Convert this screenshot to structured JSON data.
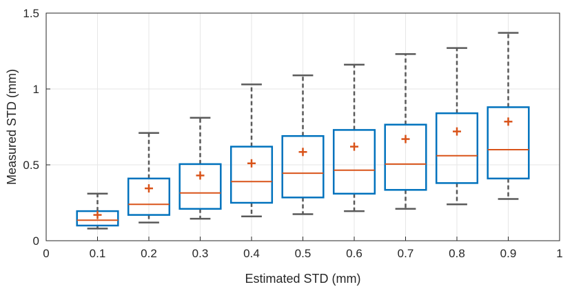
{
  "chart_data": {
    "type": "boxplot",
    "title": "",
    "xlabel": "Estimated STD (mm)",
    "ylabel": "Measured STD (mm)",
    "xlim": [
      0,
      1
    ],
    "ylim": [
      0,
      1.5
    ],
    "xticks": [
      0,
      0.1,
      0.2,
      0.3,
      0.4,
      0.5,
      0.6,
      0.7,
      0.8,
      0.9,
      1
    ],
    "xtick_labels": [
      "0",
      "0.1",
      "0.2",
      "0.3",
      "0.4",
      "0.5",
      "0.6",
      "0.7",
      "0.8",
      "0.9",
      "1"
    ],
    "yticks": [
      0,
      0.5,
      1,
      1.5
    ],
    "ytick_labels": [
      "0",
      "0.5",
      "1",
      "1.5"
    ],
    "grid": true,
    "colors": {
      "box": "#0072BD",
      "median": "#D95319",
      "mean_marker": "#D95319",
      "whisker": "#595959",
      "grid": "#e6e6e6",
      "axis": "#262626"
    },
    "boxes": [
      {
        "x": 0.1,
        "whisker_low": 0.08,
        "q1": 0.1,
        "median": 0.135,
        "q3": 0.195,
        "whisker_high": 0.31,
        "mean": 0.17
      },
      {
        "x": 0.2,
        "whisker_low": 0.12,
        "q1": 0.17,
        "median": 0.24,
        "q3": 0.41,
        "whisker_high": 0.71,
        "mean": 0.345
      },
      {
        "x": 0.3,
        "whisker_low": 0.145,
        "q1": 0.21,
        "median": 0.315,
        "q3": 0.505,
        "whisker_high": 0.81,
        "mean": 0.43
      },
      {
        "x": 0.4,
        "whisker_low": 0.16,
        "q1": 0.25,
        "median": 0.39,
        "q3": 0.62,
        "whisker_high": 1.03,
        "mean": 0.51
      },
      {
        "x": 0.5,
        "whisker_low": 0.175,
        "q1": 0.285,
        "median": 0.445,
        "q3": 0.69,
        "whisker_high": 1.09,
        "mean": 0.585
      },
      {
        "x": 0.6,
        "whisker_low": 0.195,
        "q1": 0.31,
        "median": 0.465,
        "q3": 0.73,
        "whisker_high": 1.16,
        "mean": 0.62
      },
      {
        "x": 0.7,
        "whisker_low": 0.21,
        "q1": 0.335,
        "median": 0.505,
        "q3": 0.765,
        "whisker_high": 1.23,
        "mean": 0.67
      },
      {
        "x": 0.8,
        "whisker_low": 0.24,
        "q1": 0.38,
        "median": 0.56,
        "q3": 0.84,
        "whisker_high": 1.27,
        "mean": 0.72
      },
      {
        "x": 0.9,
        "whisker_low": 0.275,
        "q1": 0.41,
        "median": 0.6,
        "q3": 0.88,
        "whisker_high": 1.37,
        "mean": 0.785
      }
    ]
  }
}
